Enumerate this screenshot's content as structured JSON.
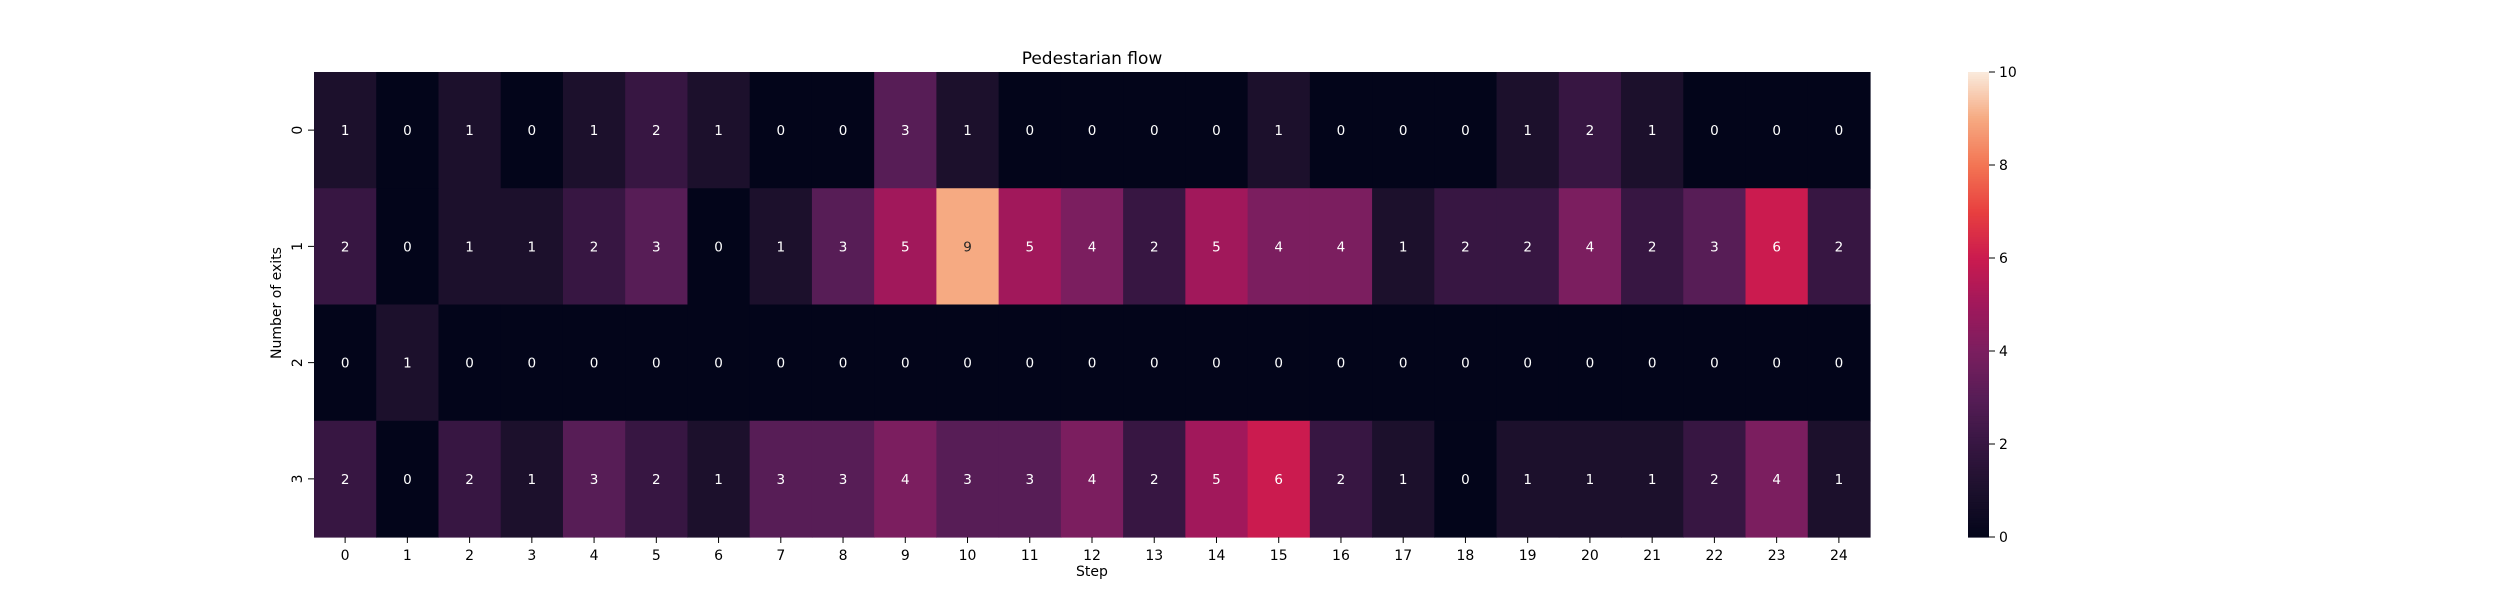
{
  "chart_data": {
    "type": "heatmap",
    "title": "Pedestarian flow",
    "xlabel": "Step",
    "ylabel": "Number of exits",
    "x_categories": [
      "0",
      "1",
      "2",
      "3",
      "4",
      "5",
      "6",
      "7",
      "8",
      "9",
      "10",
      "11",
      "12",
      "13",
      "14",
      "15",
      "16",
      "17",
      "18",
      "19",
      "20",
      "21",
      "22",
      "23",
      "24"
    ],
    "y_categories": [
      "0",
      "1",
      "2",
      "3"
    ],
    "values": [
      [
        1,
        0,
        1,
        0,
        1,
        2,
        1,
        0,
        0,
        3,
        1,
        0,
        0,
        0,
        0,
        1,
        0,
        0,
        0,
        1,
        2,
        1,
        0,
        0,
        0
      ],
      [
        2,
        0,
        1,
        1,
        2,
        3,
        0,
        1,
        3,
        5,
        9,
        5,
        4,
        2,
        5,
        4,
        4,
        1,
        2,
        2,
        4,
        2,
        3,
        6,
        2
      ],
      [
        0,
        1,
        0,
        0,
        0,
        0,
        0,
        0,
        0,
        0,
        0,
        0,
        0,
        0,
        0,
        0,
        0,
        0,
        0,
        0,
        0,
        0,
        0,
        0,
        0
      ],
      [
        2,
        0,
        2,
        1,
        3,
        2,
        1,
        3,
        3,
        4,
        3,
        3,
        4,
        2,
        5,
        6,
        2,
        1,
        0,
        1,
        1,
        1,
        2,
        4,
        1
      ]
    ],
    "colorbar": {
      "range": [
        0,
        10
      ],
      "ticks": [
        "0",
        "2",
        "4",
        "6",
        "8",
        "10"
      ]
    },
    "colormap": "rocket"
  }
}
